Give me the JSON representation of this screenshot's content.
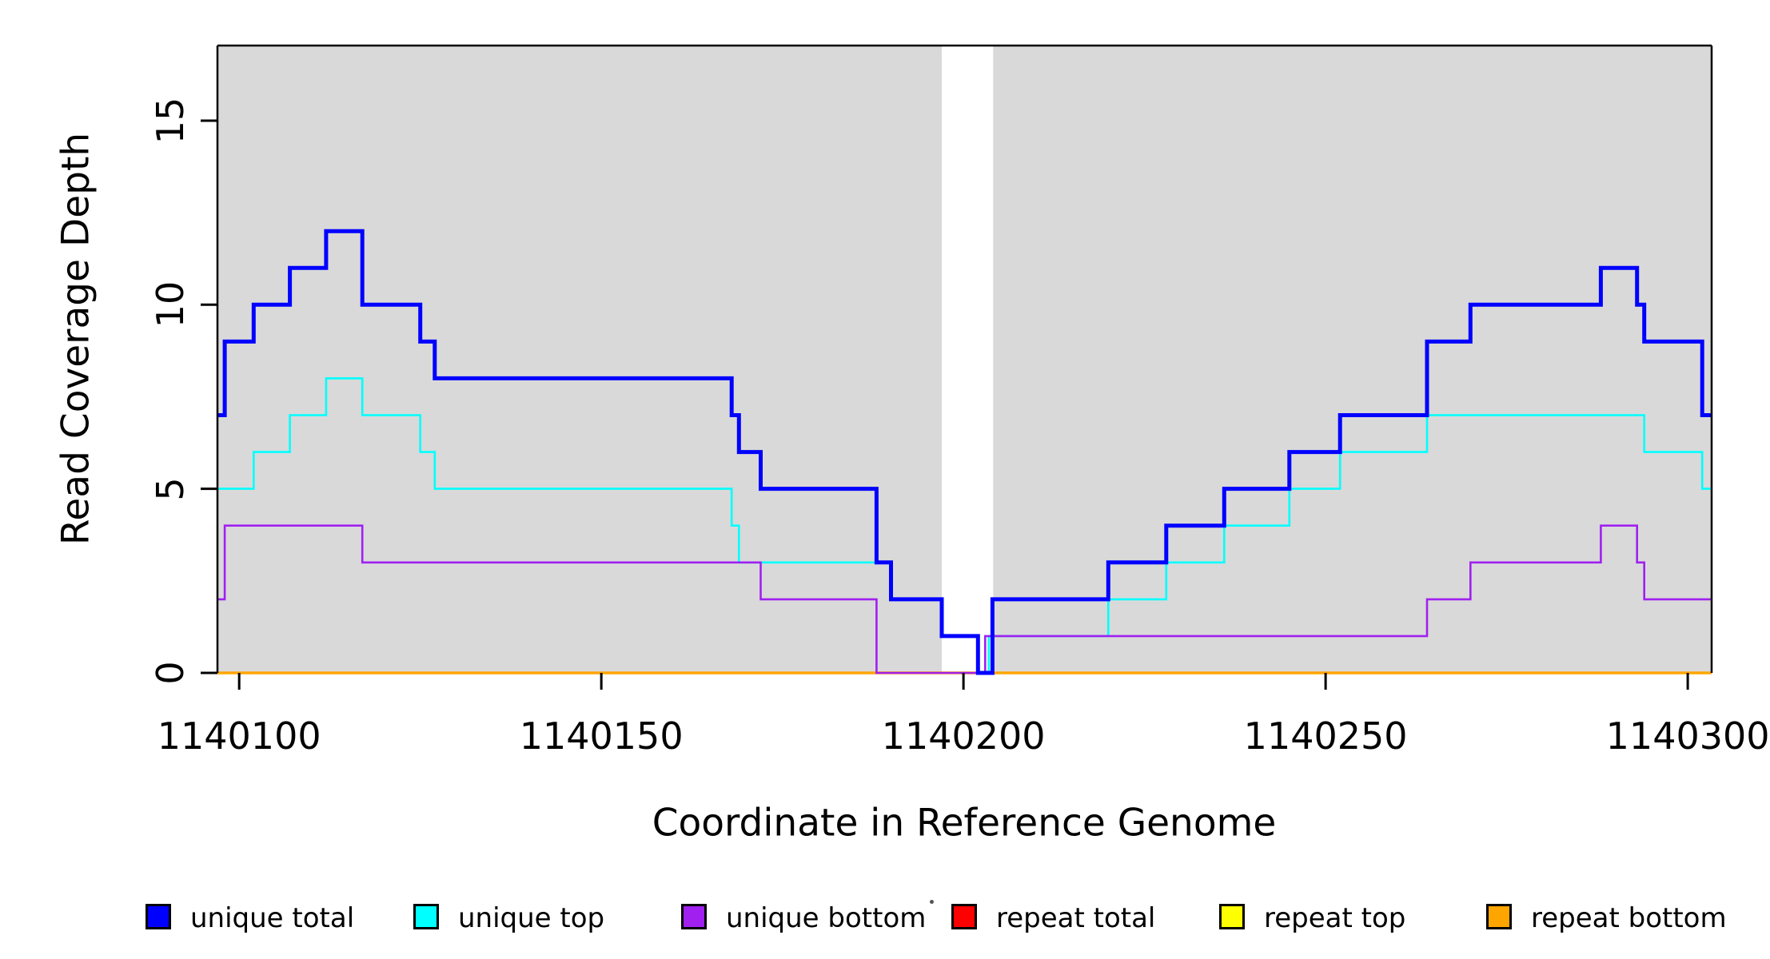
{
  "chart_data": {
    "type": "line",
    "subtype": "step",
    "title": "",
    "xlabel": "Coordinate in Reference Genome",
    "ylabel": "Read Coverage Depth",
    "x_ticks": [
      1140100,
      1140150,
      1140200,
      1140250,
      1140300
    ],
    "x_tick_labels": [
      "1140100",
      "1140150",
      "1140200",
      "1140250",
      "1140300"
    ],
    "y_ticks": [
      0,
      5,
      10,
      15
    ],
    "y_tick_labels": [
      "0",
      "5",
      "10",
      "15"
    ],
    "x_range": [
      1140097,
      1140303.3
    ],
    "y_range": [
      0,
      17
    ],
    "grid": false,
    "panel_fill": "#d9d9d9",
    "shaded_regions": [
      [
        1140097,
        1140197
      ],
      [
        1140204.1,
        1140303.3
      ]
    ],
    "gap_region": [
      1140197,
      1140204.1
    ],
    "legend_position": "bottom",
    "series": [
      {
        "name": "unique total",
        "color": "#0000ff",
        "line_width": 5,
        "steps": [
          [
            1140097,
            7
          ],
          [
            1140098,
            9
          ],
          [
            1140102,
            10
          ],
          [
            1140107,
            11
          ],
          [
            1140112,
            12
          ],
          [
            1140117,
            10
          ],
          [
            1140125,
            9
          ],
          [
            1140127,
            8
          ],
          [
            1140168,
            7
          ],
          [
            1140169,
            6
          ],
          [
            1140172,
            5
          ],
          [
            1140188,
            3
          ],
          [
            1140190,
            2
          ],
          [
            1140197,
            1
          ],
          [
            1140202,
            0
          ],
          [
            1140204,
            2
          ],
          [
            1140220,
            3
          ],
          [
            1140228,
            4
          ],
          [
            1140236,
            5
          ],
          [
            1140245,
            6
          ],
          [
            1140252,
            7
          ],
          [
            1140264,
            9
          ],
          [
            1140270,
            10
          ],
          [
            1140288,
            11
          ],
          [
            1140293,
            10
          ],
          [
            1140294,
            9
          ],
          [
            1140302,
            7
          ]
        ]
      },
      {
        "name": "unique top",
        "color": "#00ffff",
        "line_width": 2.6,
        "steps": [
          [
            1140097,
            5
          ],
          [
            1140102,
            6
          ],
          [
            1140107,
            7
          ],
          [
            1140112,
            8
          ],
          [
            1140117,
            7
          ],
          [
            1140125,
            6
          ],
          [
            1140127,
            5
          ],
          [
            1140168,
            4
          ],
          [
            1140169,
            3
          ],
          [
            1140190,
            2
          ],
          [
            1140197,
            1
          ],
          [
            1140202,
            0
          ],
          [
            1140203.5,
            1
          ],
          [
            1140220,
            2
          ],
          [
            1140228,
            3
          ],
          [
            1140236,
            4
          ],
          [
            1140245,
            5
          ],
          [
            1140252,
            6
          ],
          [
            1140264,
            7
          ],
          [
            1140294,
            6
          ],
          [
            1140302,
            5
          ]
        ]
      },
      {
        "name": "unique bottom",
        "color": "#a020f0",
        "line_width": 2.6,
        "steps": [
          [
            1140097,
            2
          ],
          [
            1140098,
            4
          ],
          [
            1140117,
            3
          ],
          [
            1140172,
            2
          ],
          [
            1140188,
            0
          ],
          [
            1140203,
            1
          ],
          [
            1140264,
            2
          ],
          [
            1140270,
            3
          ],
          [
            1140288,
            4
          ],
          [
            1140293,
            3
          ],
          [
            1140294,
            2
          ]
        ]
      },
      {
        "name": "repeat total",
        "color": "#ff0000",
        "line_width": 2.6,
        "steps": [
          [
            1140097,
            0
          ]
        ]
      },
      {
        "name": "repeat top",
        "color": "#ffff00",
        "line_width": 2.6,
        "steps": [
          [
            1140097,
            0
          ]
        ]
      },
      {
        "name": "repeat bottom",
        "color": "#ffa500",
        "line_width": 3.6,
        "steps": [
          [
            1140097,
            0
          ]
        ]
      }
    ]
  },
  "legend": {
    "items": [
      {
        "label": "unique total",
        "color": "#0000ff"
      },
      {
        "label": "unique top",
        "color": "#00ffff"
      },
      {
        "label": "unique bottom",
        "color": "#a020f0"
      },
      {
        "label": "repeat total",
        "color": "#ff0000"
      },
      {
        "label": "repeat top",
        "color": "#ffff00"
      },
      {
        "label": "repeat bottom",
        "color": "#ffa500"
      }
    ]
  }
}
